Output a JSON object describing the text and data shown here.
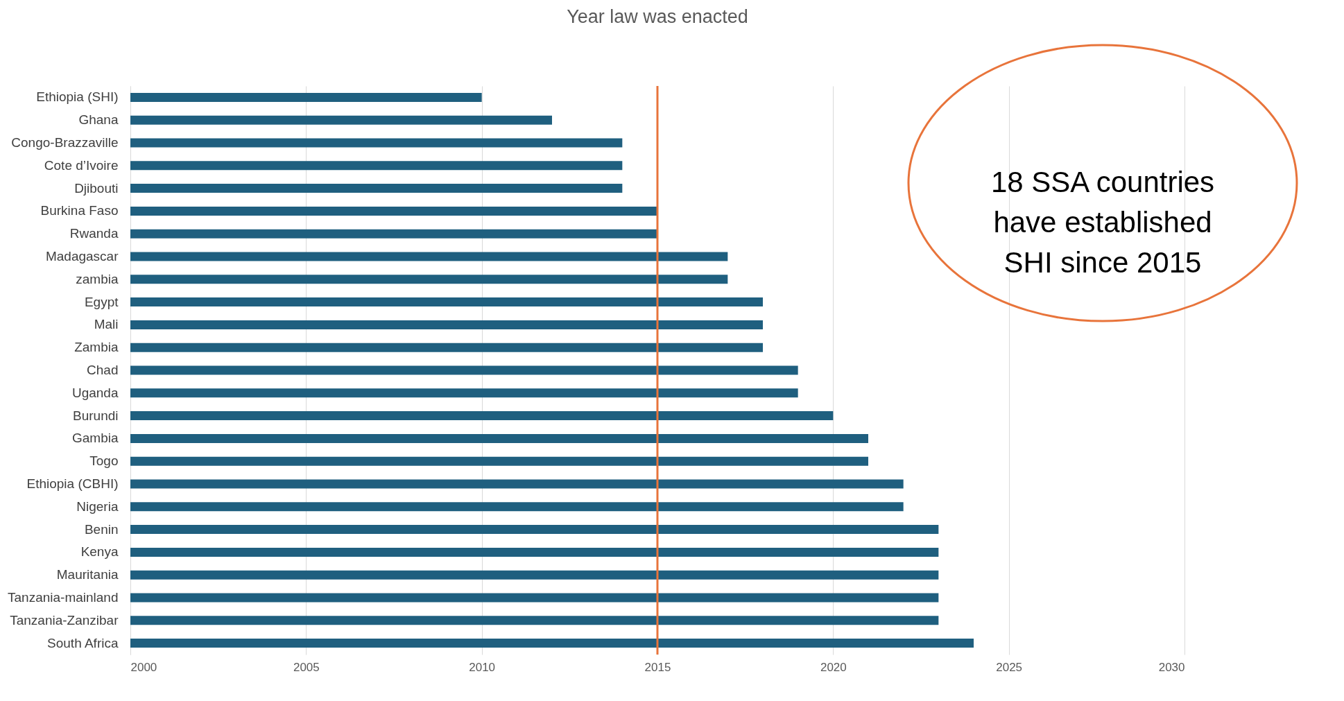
{
  "chart_data": {
    "type": "bar",
    "orientation": "horizontal",
    "title": "Year law was enacted",
    "categories": [
      "Ethiopia (SHI)",
      "Ghana",
      "Congo-Brazzaville",
      "Cote d’Ivoire",
      "Djibouti",
      "Burkina Faso",
      "Rwanda",
      "Madagascar",
      "zambia",
      "Egypt",
      "Mali",
      "Zambia",
      "Chad",
      "Uganda",
      "Burundi",
      "Gambia",
      "Togo",
      "Ethiopia (CBHI)",
      "Nigeria",
      "Benin",
      "Kenya",
      "Mauritania",
      "Tanzania-mainland",
      "Tanzania-Zanzibar",
      "South Africa"
    ],
    "values": [
      2010,
      2012,
      2014,
      2014,
      2014,
      2015,
      2015,
      2017,
      2017,
      2018,
      2018,
      2018,
      2019,
      2019,
      2020,
      2021,
      2021,
      2022,
      2022,
      2023,
      2023,
      2023,
      2023,
      2023,
      2024
    ],
    "color": "#1f5f7f",
    "xlim": [
      2000,
      2030
    ],
    "xticks": [
      2000,
      2005,
      2010,
      2015,
      2020,
      2025,
      2030
    ],
    "grid": "x",
    "ref_lines": [
      {
        "axis": "x",
        "value": 2015,
        "color": "#e8743b"
      }
    ],
    "annotations": [
      "18 SSA countries have established SHI since 2015"
    ]
  }
}
